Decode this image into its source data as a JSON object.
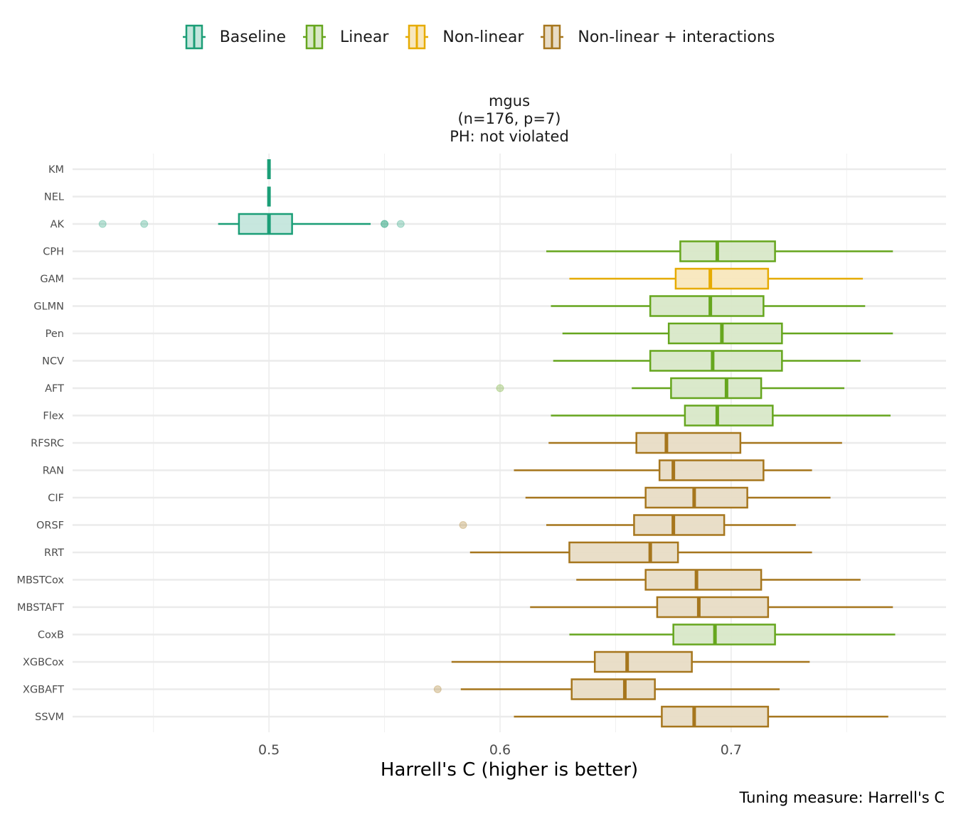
{
  "legend": {
    "title": "",
    "items": [
      {
        "label": "Baseline",
        "color": "#1b9e77",
        "fill": "#c4e6dc"
      },
      {
        "label": "Linear",
        "color": "#66a61e",
        "fill": "#d8e8c8"
      },
      {
        "label": "Non-linear",
        "color": "#e6ab02",
        "fill": "#f8e7bd"
      },
      {
        "label": "Non-linear + interactions",
        "color": "#a6761d",
        "fill": "#e8dcc5"
      }
    ]
  },
  "strip": {
    "line1": "mgus",
    "line2": "(n=176, p=7)",
    "line3": "PH: not violated"
  },
  "caption": "Tuning measure: Harrell's C",
  "chart_data": {
    "type": "boxplot",
    "orientation": "horizontal",
    "title": "mgus (n=176, p=7) PH: not violated",
    "xlabel": "Harrell's C (higher is better)",
    "ylabel": "",
    "xlim": [
      0.415,
      0.793
    ],
    "xticks": [
      0.5,
      0.6,
      0.7
    ],
    "xtick_labels": [
      "0.5",
      "0.6",
      "0.7"
    ],
    "minor_gridlines": [
      0.45,
      0.55,
      0.65,
      0.75
    ],
    "grid": true,
    "legend_position": "top",
    "categories": [
      "KM",
      "NEL",
      "AK",
      "CPH",
      "GAM",
      "GLMN",
      "Pen",
      "NCV",
      "AFT",
      "Flex",
      "RFSRC",
      "RAN",
      "CIF",
      "ORSF",
      "RRT",
      "MBSTCox",
      "MBSTAFT",
      "CoxB",
      "XGBCox",
      "XGBAFT",
      "SSVM"
    ],
    "boxes": [
      {
        "model": "KM",
        "group": "Baseline",
        "whisker_low": 0.5,
        "q1": 0.5,
        "median": 0.5,
        "q3": 0.5,
        "whisker_high": 0.5,
        "outliers": []
      },
      {
        "model": "NEL",
        "group": "Baseline",
        "whisker_low": 0.5,
        "q1": 0.5,
        "median": 0.5,
        "q3": 0.5,
        "whisker_high": 0.5,
        "outliers": []
      },
      {
        "model": "AK",
        "group": "Baseline",
        "whisker_low": 0.478,
        "q1": 0.487,
        "median": 0.5,
        "q3": 0.51,
        "whisker_high": 0.544,
        "outliers": [
          0.428,
          0.446,
          0.55,
          0.55,
          0.557
        ]
      },
      {
        "model": "CPH",
        "group": "Linear",
        "whisker_low": 0.62,
        "q1": 0.678,
        "median": 0.694,
        "q3": 0.719,
        "whisker_high": 0.77,
        "outliers": []
      },
      {
        "model": "GAM",
        "group": "Non-linear",
        "whisker_low": 0.63,
        "q1": 0.676,
        "median": 0.691,
        "q3": 0.716,
        "whisker_high": 0.757,
        "outliers": []
      },
      {
        "model": "GLMN",
        "group": "Linear",
        "whisker_low": 0.622,
        "q1": 0.665,
        "median": 0.691,
        "q3": 0.714,
        "whisker_high": 0.758,
        "outliers": []
      },
      {
        "model": "Pen",
        "group": "Linear",
        "whisker_low": 0.627,
        "q1": 0.673,
        "median": 0.696,
        "q3": 0.722,
        "whisker_high": 0.77,
        "outliers": []
      },
      {
        "model": "NCV",
        "group": "Linear",
        "whisker_low": 0.623,
        "q1": 0.665,
        "median": 0.692,
        "q3": 0.722,
        "whisker_high": 0.756,
        "outliers": []
      },
      {
        "model": "AFT",
        "group": "Linear",
        "whisker_low": 0.657,
        "q1": 0.674,
        "median": 0.698,
        "q3": 0.713,
        "whisker_high": 0.749,
        "outliers": [
          0.6
        ]
      },
      {
        "model": "Flex",
        "group": "Linear",
        "whisker_low": 0.622,
        "q1": 0.68,
        "median": 0.694,
        "q3": 0.718,
        "whisker_high": 0.769,
        "outliers": []
      },
      {
        "model": "RFSRC",
        "group": "Non-linear + interactions",
        "whisker_low": 0.621,
        "q1": 0.659,
        "median": 0.672,
        "q3": 0.704,
        "whisker_high": 0.748,
        "outliers": []
      },
      {
        "model": "RAN",
        "group": "Non-linear + interactions",
        "whisker_low": 0.606,
        "q1": 0.669,
        "median": 0.675,
        "q3": 0.714,
        "whisker_high": 0.735,
        "outliers": []
      },
      {
        "model": "CIF",
        "group": "Non-linear + interactions",
        "whisker_low": 0.611,
        "q1": 0.663,
        "median": 0.684,
        "q3": 0.707,
        "whisker_high": 0.743,
        "outliers": []
      },
      {
        "model": "ORSF",
        "group": "Non-linear + interactions",
        "whisker_low": 0.62,
        "q1": 0.658,
        "median": 0.675,
        "q3": 0.697,
        "whisker_high": 0.728,
        "outliers": [
          0.584
        ]
      },
      {
        "model": "RRT",
        "group": "Non-linear + interactions",
        "whisker_low": 0.587,
        "q1": 0.63,
        "median": 0.665,
        "q3": 0.677,
        "whisker_high": 0.735,
        "outliers": []
      },
      {
        "model": "MBSTCox",
        "group": "Non-linear + interactions",
        "whisker_low": 0.633,
        "q1": 0.663,
        "median": 0.685,
        "q3": 0.713,
        "whisker_high": 0.756,
        "outliers": []
      },
      {
        "model": "MBSTAFT",
        "group": "Non-linear + interactions",
        "whisker_low": 0.613,
        "q1": 0.668,
        "median": 0.686,
        "q3": 0.716,
        "whisker_high": 0.77,
        "outliers": []
      },
      {
        "model": "CoxB",
        "group": "Linear",
        "whisker_low": 0.63,
        "q1": 0.675,
        "median": 0.693,
        "q3": 0.719,
        "whisker_high": 0.771,
        "outliers": []
      },
      {
        "model": "XGBCox",
        "group": "Non-linear + interactions",
        "whisker_low": 0.579,
        "q1": 0.641,
        "median": 0.655,
        "q3": 0.683,
        "whisker_high": 0.734,
        "outliers": []
      },
      {
        "model": "XGBAFT",
        "group": "Non-linear + interactions",
        "whisker_low": 0.583,
        "q1": 0.631,
        "median": 0.654,
        "q3": 0.667,
        "whisker_high": 0.721,
        "outliers": [
          0.573
        ]
      },
      {
        "model": "SSVM",
        "group": "Non-linear + interactions",
        "whisker_low": 0.606,
        "q1": 0.67,
        "median": 0.684,
        "q3": 0.716,
        "whisker_high": 0.768,
        "outliers": []
      }
    ]
  }
}
